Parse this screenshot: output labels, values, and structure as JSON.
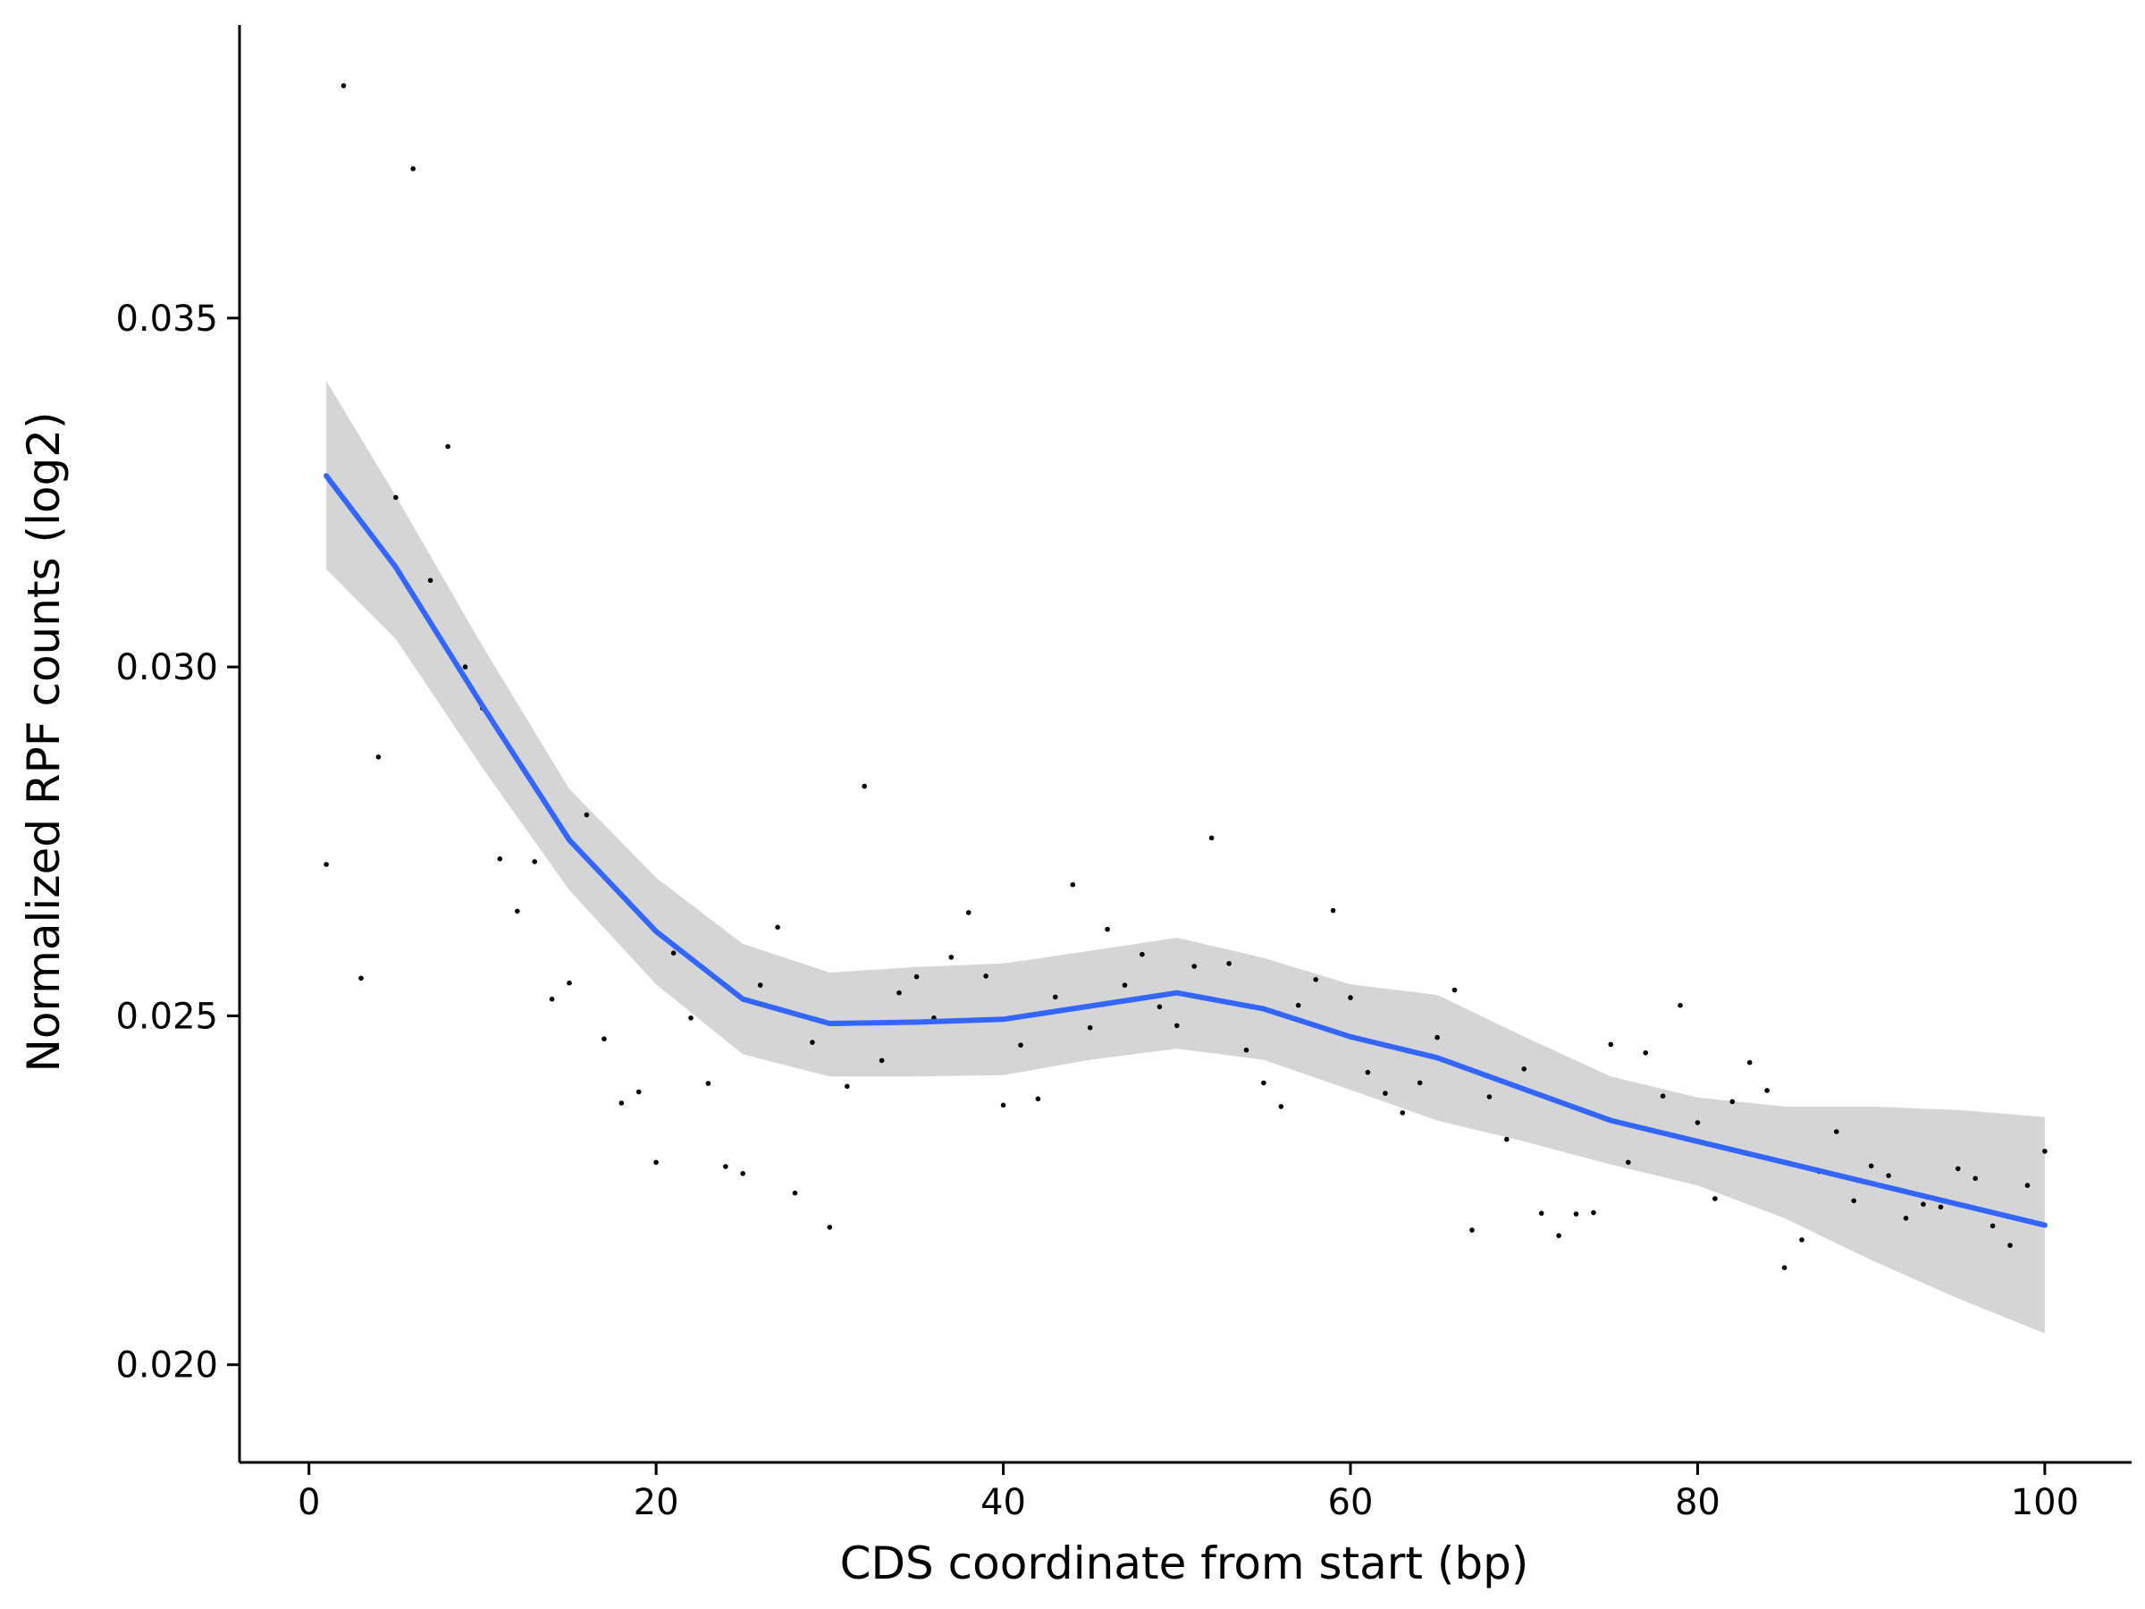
{
  "chart_data": {
    "type": "scatter",
    "title": "",
    "xlabel": "CDS coordinate from start (bp)",
    "ylabel": "Normalized RPF counts (log2)",
    "xlim": [
      -4,
      105
    ],
    "ylim": [
      0.0186,
      0.0392
    ],
    "x_ticks": [
      0,
      20,
      40,
      60,
      80,
      100
    ],
    "y_ticks": [
      0.02,
      0.025,
      0.03,
      0.035
    ],
    "x_tick_labels": [
      "0",
      "20",
      "40",
      "60",
      "80",
      "100"
    ],
    "y_tick_labels": [
      "0.020",
      "0.025",
      "0.030",
      "0.035"
    ],
    "grid": false,
    "legend": "none",
    "colors": {
      "points": "#000000",
      "smooth_line": "#3366FF",
      "confidence_band": "#D5D5D5",
      "axis": "#000000"
    },
    "points": [
      [
        1,
        0.02717
      ],
      [
        2,
        0.03833
      ],
      [
        3,
        0.02554
      ],
      [
        4,
        0.02871
      ],
      [
        5,
        0.03243
      ],
      [
        6,
        0.03714
      ],
      [
        7,
        0.03124
      ],
      [
        8,
        0.03316
      ],
      [
        9,
        0.03
      ],
      [
        10,
        0.02941
      ],
      [
        11,
        0.02725
      ],
      [
        12,
        0.0265
      ],
      [
        13,
        0.02721
      ],
      [
        14,
        0.02524
      ],
      [
        15,
        0.02547
      ],
      [
        16,
        0.02788
      ],
      [
        17,
        0.02467
      ],
      [
        18,
        0.02375
      ],
      [
        19,
        0.02391
      ],
      [
        20,
        0.0229
      ],
      [
        21,
        0.0259
      ],
      [
        22,
        0.02497
      ],
      [
        23,
        0.02403
      ],
      [
        24,
        0.02284
      ],
      [
        25,
        0.02274
      ],
      [
        26,
        0.02544
      ],
      [
        27,
        0.02627
      ],
      [
        28,
        0.02246
      ],
      [
        29,
        0.02462
      ],
      [
        30,
        0.02197
      ],
      [
        31,
        0.02399
      ],
      [
        32,
        0.02829
      ],
      [
        33,
        0.02436
      ],
      [
        34,
        0.02533
      ],
      [
        35,
        0.02556
      ],
      [
        36,
        0.02497
      ],
      [
        37,
        0.02584
      ],
      [
        38,
        0.02648
      ],
      [
        39,
        0.02557
      ],
      [
        40,
        0.02372
      ],
      [
        41,
        0.02458
      ],
      [
        42,
        0.02381
      ],
      [
        43,
        0.02527
      ],
      [
        44,
        0.02688
      ],
      [
        45,
        0.02483
      ],
      [
        46,
        0.02624
      ],
      [
        47,
        0.02544
      ],
      [
        48,
        0.02588
      ],
      [
        49,
        0.02513
      ],
      [
        50,
        0.02486
      ],
      [
        51,
        0.02571
      ],
      [
        52,
        0.02755
      ],
      [
        53,
        0.02575
      ],
      [
        54,
        0.02451
      ],
      [
        55,
        0.02404
      ],
      [
        56,
        0.0237
      ],
      [
        57,
        0.02515
      ],
      [
        58,
        0.02552
      ],
      [
        59,
        0.02651
      ],
      [
        60,
        0.02526
      ],
      [
        61,
        0.02419
      ],
      [
        62,
        0.02389
      ],
      [
        63,
        0.02361
      ],
      [
        64,
        0.02404
      ],
      [
        65,
        0.02469
      ],
      [
        66,
        0.02537
      ],
      [
        67,
        0.02193
      ],
      [
        68,
        0.02384
      ],
      [
        69,
        0.02323
      ],
      [
        70,
        0.02424
      ],
      [
        71,
        0.02217
      ],
      [
        72,
        0.02185
      ],
      [
        73,
        0.02216
      ],
      [
        74,
        0.02218
      ],
      [
        75,
        0.02459
      ],
      [
        76,
        0.0229
      ],
      [
        77,
        0.02447
      ],
      [
        78,
        0.02385
      ],
      [
        79,
        0.02515
      ],
      [
        80,
        0.02347
      ],
      [
        81,
        0.02238
      ],
      [
        82,
        0.02377
      ],
      [
        83,
        0.02433
      ],
      [
        84,
        0.02393
      ],
      [
        85,
        0.02139
      ],
      [
        86,
        0.02179
      ],
      [
        87,
        0.02277
      ],
      [
        88,
        0.02334
      ],
      [
        89,
        0.02235
      ],
      [
        90,
        0.02285
      ],
      [
        91,
        0.02271
      ],
      [
        92,
        0.0221
      ],
      [
        93,
        0.0223
      ],
      [
        94,
        0.02226
      ],
      [
        95,
        0.02281
      ],
      [
        96,
        0.02267
      ],
      [
        97,
        0.02199
      ],
      [
        98,
        0.02171
      ],
      [
        99,
        0.02257
      ],
      [
        100,
        0.02306
      ]
    ],
    "smooth": [
      [
        1,
        0.03274
      ],
      [
        5,
        0.03143
      ],
      [
        10,
        0.02944
      ],
      [
        15,
        0.02752
      ],
      [
        20,
        0.02621
      ],
      [
        25,
        0.02524
      ],
      [
        30,
        0.02489
      ],
      [
        35,
        0.02491
      ],
      [
        40,
        0.02495
      ],
      [
        45,
        0.02514
      ],
      [
        50,
        0.02533
      ],
      [
        55,
        0.0251
      ],
      [
        60,
        0.0247
      ],
      [
        65,
        0.0244
      ],
      [
        70,
        0.02395
      ],
      [
        75,
        0.0235
      ],
      [
        80,
        0.0232
      ],
      [
        85,
        0.0229
      ],
      [
        90,
        0.0226
      ],
      [
        95,
        0.0223
      ],
      [
        100,
        0.022
      ]
    ],
    "confidence_band": [
      [
        1,
        0.0314,
        0.0341
      ],
      [
        5,
        0.0304,
        0.03245
      ],
      [
        10,
        0.02855,
        0.0303
      ],
      [
        15,
        0.0268,
        0.02825
      ],
      [
        20,
        0.02545,
        0.02698
      ],
      [
        25,
        0.02445,
        0.02603
      ],
      [
        30,
        0.02413,
        0.02562
      ],
      [
        35,
        0.02413,
        0.0257
      ],
      [
        40,
        0.02415,
        0.02575
      ],
      [
        45,
        0.02437,
        0.02593
      ],
      [
        50,
        0.02453,
        0.02612
      ],
      [
        55,
        0.02437,
        0.02583
      ],
      [
        60,
        0.02394,
        0.02545
      ],
      [
        65,
        0.0235,
        0.0253
      ],
      [
        70,
        0.0232,
        0.0247
      ],
      [
        75,
        0.02287,
        0.02413
      ],
      [
        80,
        0.02257,
        0.02383
      ],
      [
        85,
        0.0221,
        0.0237
      ],
      [
        90,
        0.0215,
        0.0237
      ],
      [
        95,
        0.02095,
        0.02365
      ],
      [
        100,
        0.02045,
        0.02355
      ]
    ]
  }
}
